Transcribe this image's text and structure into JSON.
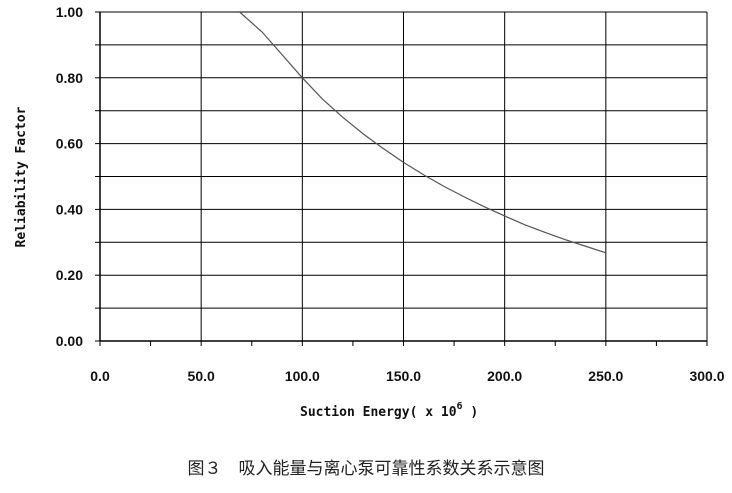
{
  "chart_data": {
    "type": "line",
    "xlabel": "Suction Energy( x 10",
    "xlabel_exponent": "6",
    "xlabel_suffix": " )",
    "ylabel": "Reliability Factor",
    "xlim": [
      0,
      300
    ],
    "ylim": [
      0,
      1
    ],
    "x_ticks": [
      "0.0",
      "50.0",
      "100.0",
      "150.0",
      "200.0",
      "250.0",
      "300.0"
    ],
    "y_ticks": [
      "0.00",
      "0.20",
      "0.40",
      "0.60",
      "0.80",
      "1.00"
    ],
    "grid": true,
    "series": [
      {
        "color": "#555555",
        "x": [
          69,
          80,
          90,
          100,
          110,
          120,
          130,
          140,
          150,
          160,
          170,
          180,
          190,
          200,
          210,
          220,
          230,
          240,
          250
        ],
        "y": [
          1.0,
          0.94,
          0.87,
          0.8,
          0.735,
          0.68,
          0.63,
          0.585,
          0.543,
          0.505,
          0.47,
          0.438,
          0.408,
          0.38,
          0.353,
          0.33,
          0.308,
          0.288,
          0.268
        ]
      }
    ]
  },
  "caption": "图３　吸入能量与离心泵可靠性系数关系示意图"
}
